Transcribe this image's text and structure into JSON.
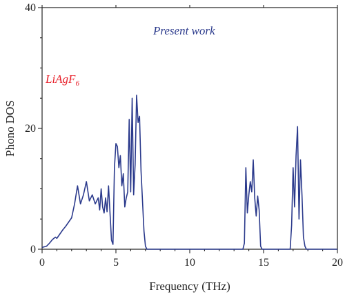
{
  "chart_data": {
    "type": "line",
    "xlabel": "Frequency (THz)",
    "ylabel": "Phono DOS",
    "xlim": [
      0,
      20
    ],
    "ylim": [
      0,
      40
    ],
    "xticks": [
      "0",
      "5",
      "10",
      "15",
      "20"
    ],
    "yticks": [
      "0",
      "20",
      "40"
    ],
    "grid": false,
    "line_color": "#2b3a8c",
    "annotations": {
      "present_work": "Present work",
      "compound_main": "LiAgF",
      "compound_sub": "6",
      "compound_color": "#e8202a"
    },
    "series": [
      {
        "x": [
          0.0,
          0.3,
          0.5,
          0.7,
          0.9,
          1.0,
          1.2,
          1.4,
          1.6,
          1.8,
          2.0,
          2.2,
          2.4,
          2.6,
          2.8,
          3.0,
          3.2,
          3.4,
          3.6,
          3.8,
          3.9,
          4.0,
          4.1,
          4.2,
          4.3,
          4.4,
          4.5,
          4.6,
          4.7,
          4.8,
          4.9,
          5.0,
          5.1,
          5.2,
          5.3,
          5.4,
          5.5,
          5.6,
          5.7,
          5.8,
          5.9,
          6.0,
          6.1,
          6.2,
          6.3,
          6.4,
          6.5,
          6.6,
          6.7,
          6.8,
          6.9,
          7.0,
          7.1,
          7.2,
          7.3,
          7.4,
          7.5,
          7.6,
          7.7,
          7.8,
          7.9,
          8.0,
          8.1,
          13.6,
          13.7,
          13.8,
          13.9,
          14.0,
          14.1,
          14.2,
          14.3,
          14.4,
          14.5,
          14.6,
          14.7,
          14.8,
          14.9,
          15.0,
          15.1,
          16.8,
          16.9,
          17.0,
          17.1,
          17.2,
          17.3,
          17.4,
          17.5,
          17.6,
          17.7,
          17.8,
          17.9,
          18.0,
          18.1,
          20.0
        ],
        "y": [
          0.3,
          0.5,
          1.0,
          1.6,
          2.0,
          1.8,
          2.5,
          3.2,
          3.8,
          4.5,
          5.2,
          7.5,
          10.5,
          7.5,
          9.0,
          11.2,
          8.0,
          9.0,
          7.5,
          8.5,
          6.5,
          10.0,
          7.0,
          6.0,
          8.5,
          6.2,
          10.5,
          6.0,
          1.5,
          0.8,
          13.5,
          17.5,
          17.0,
          13.5,
          15.5,
          10.5,
          12.5,
          7.0,
          8.5,
          9.5,
          21.5,
          9.5,
          25.0,
          9.0,
          14.0,
          25.5,
          21.0,
          22.0,
          13.0,
          8.0,
          3.0,
          0.5,
          0.0,
          0.0,
          0.0,
          0.0,
          0.0,
          0.0,
          0.0,
          0.0,
          0.0,
          0.0,
          0.0,
          0.0,
          1.0,
          13.5,
          6.0,
          9.0,
          11.2,
          9.5,
          14.8,
          8.5,
          5.5,
          8.8,
          6.5,
          0.5,
          0.0,
          0.0,
          0.0,
          0.0,
          4.0,
          13.5,
          7.0,
          15.5,
          20.3,
          5.0,
          14.8,
          9.0,
          2.0,
          0.5,
          0.0,
          0.0,
          0.0,
          0.0
        ]
      }
    ]
  }
}
